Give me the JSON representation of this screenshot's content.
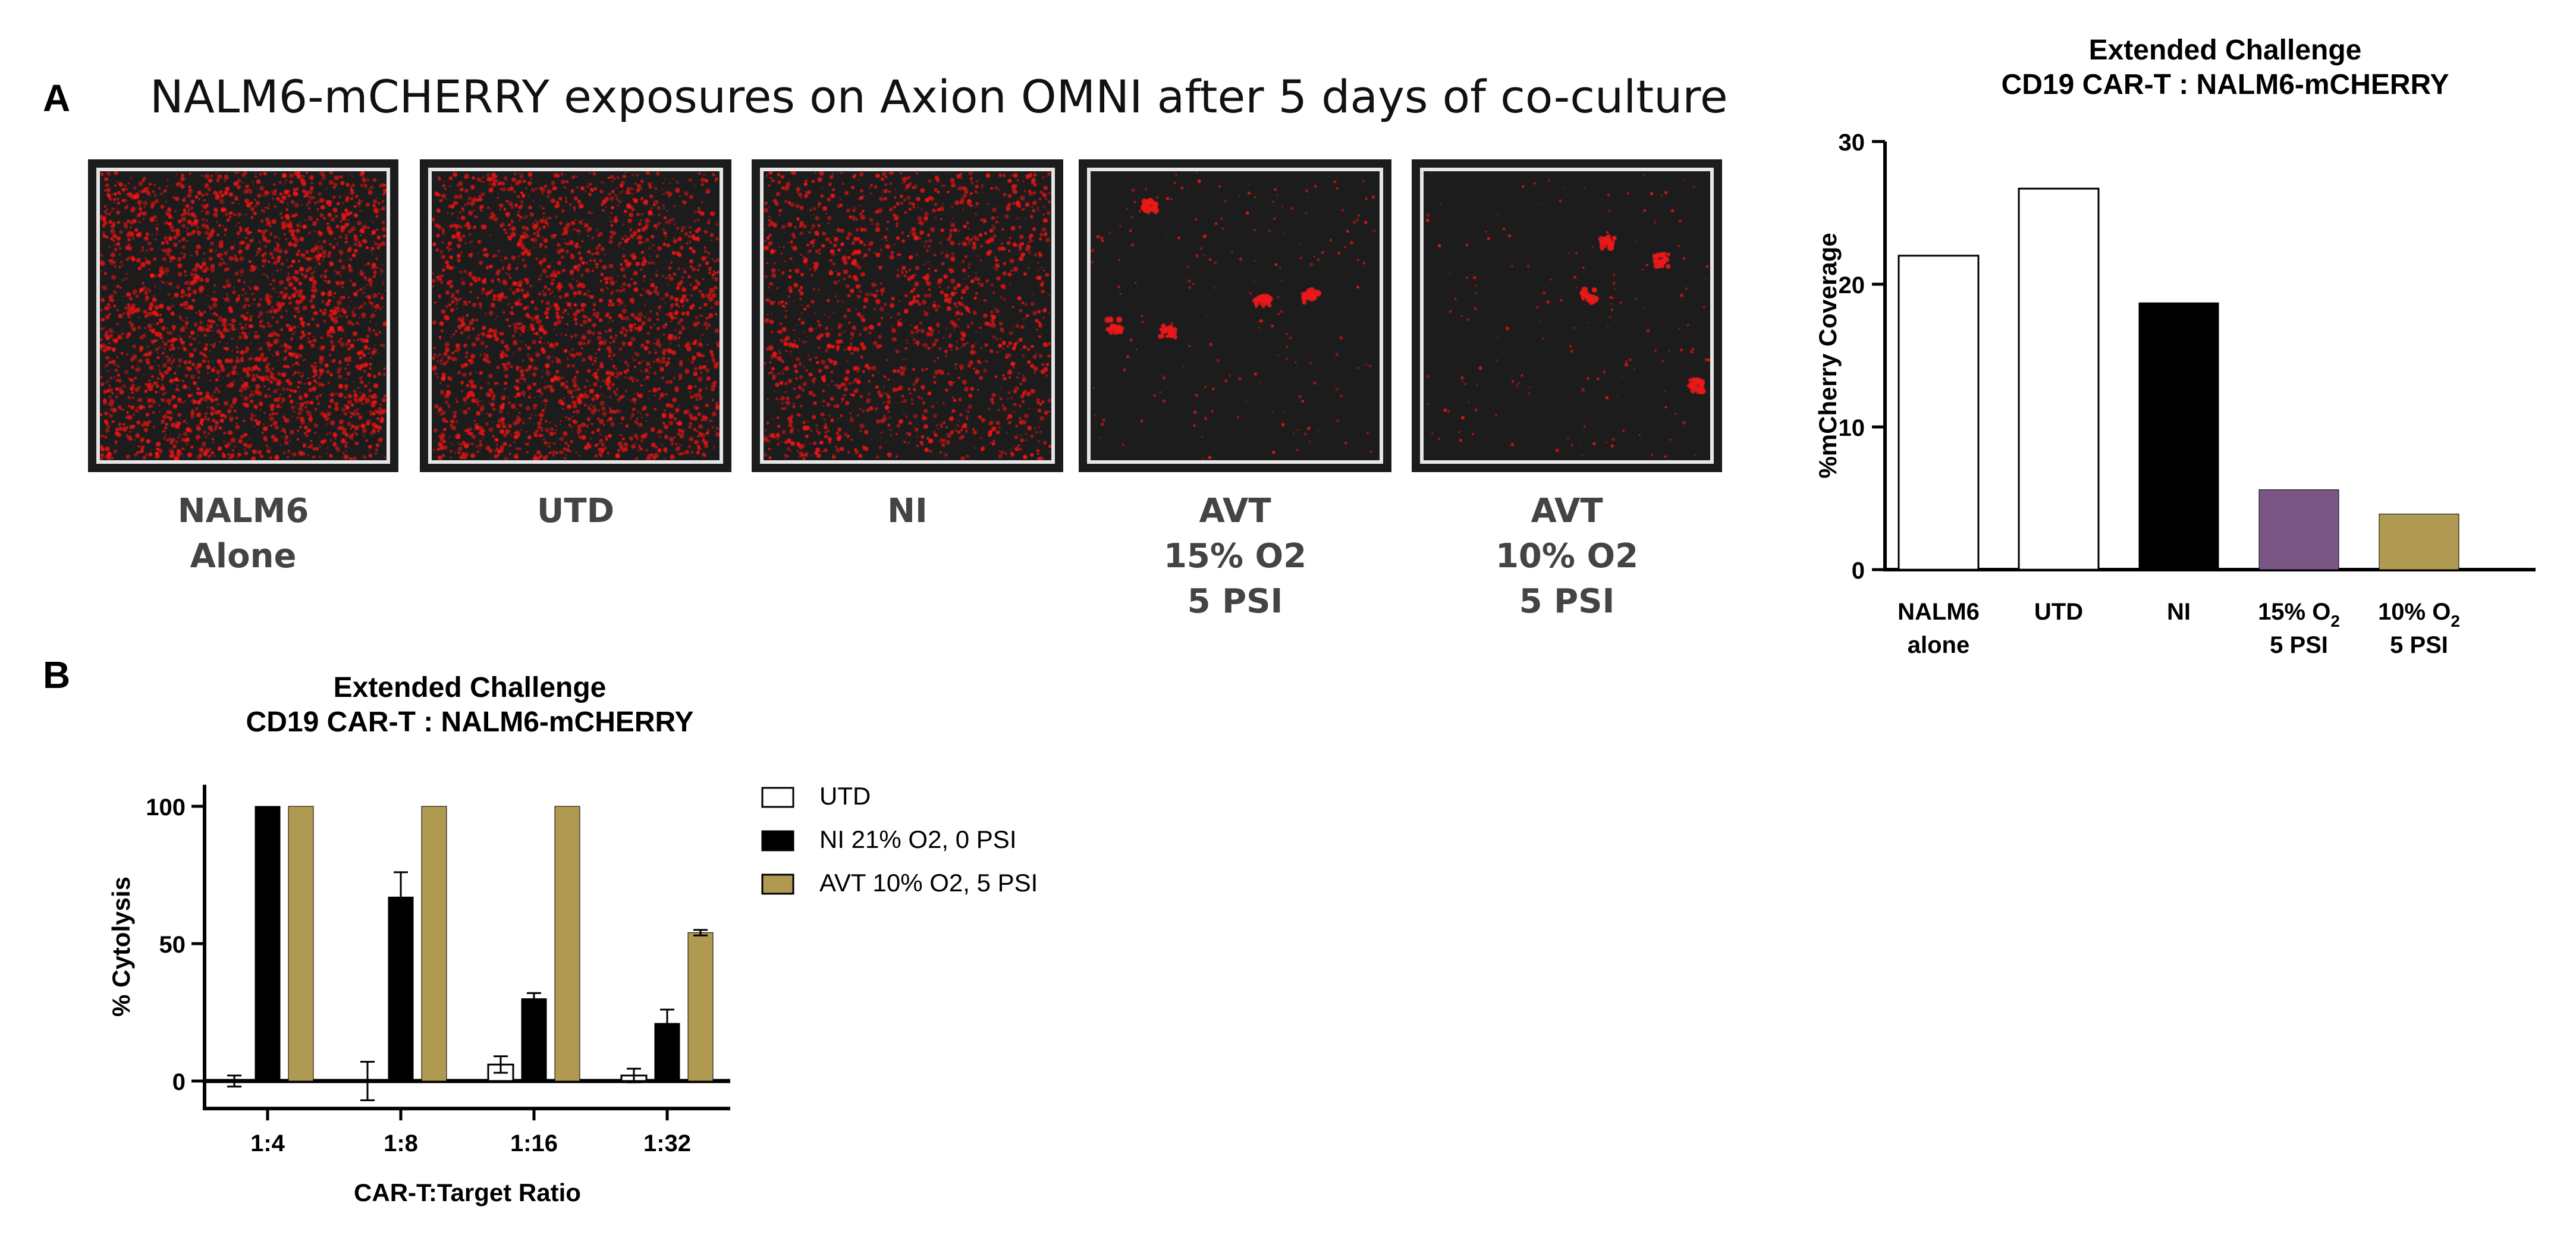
{
  "panel_a": {
    "letter": "A",
    "heading": "NALM6-mCHERRY exposures on Axion OMNI after 5 days of co-culture",
    "images": [
      {
        "label_lines": [
          "NALM6",
          "Alone"
        ],
        "density": 1.0
      },
      {
        "label_lines": [
          "UTD"
        ],
        "density": 0.85
      },
      {
        "label_lines": [
          "NI"
        ],
        "density": 0.6
      },
      {
        "label_lines": [
          "AVT",
          "15% O2",
          "5 PSI"
        ],
        "density": 0.05
      },
      {
        "label_lines": [
          "AVT",
          "10% O2",
          "5 PSI"
        ],
        "density": 0.04
      }
    ],
    "chart": {
      "title_lines": [
        "Extended Challenge",
        "CD19 CAR-T : NALM6-mCHERRY"
      ],
      "ylabel": "%mCherry Coverage",
      "category_lines": [
        [
          "NALM6",
          "alone"
        ],
        [
          "UTD"
        ],
        [
          "NI"
        ],
        [
          "15% O",
          "2",
          "5 PSI"
        ],
        [
          "10% O",
          "2",
          "5 PSI"
        ]
      ]
    }
  },
  "panel_b": {
    "letter": "B",
    "chart": {
      "title_lines": [
        "Extended Challenge",
        "CD19 CAR-T : NALM6-mCHERRY"
      ],
      "xlabel": "CAR-T:Target Ratio",
      "ylabel": "% Cytolysis",
      "legend": [
        "UTD",
        "NI 21% O2, 0 PSI",
        "AVT 10% O2, 5 PSI"
      ]
    }
  },
  "chart_data": [
    {
      "type": "bar",
      "title": "Extended Challenge CD19 CAR-T : NALM6-mCHERRY",
      "xlabel": "",
      "ylabel": "%mCherry Coverage",
      "categories": [
        "NALM6 alone",
        "UTD",
        "NI",
        "15% O2 5 PSI",
        "10% O2 5 PSI"
      ],
      "values": [
        22,
        26.7,
        18.7,
        5.6,
        3.9
      ],
      "colors": [
        "#ffffff",
        "#ffffff",
        "#000000",
        "#7a5684",
        "#b09a52"
      ],
      "ylim": [
        0,
        30
      ],
      "yticks": [
        0,
        10,
        20,
        30
      ],
      "grid": false,
      "legend": "none"
    },
    {
      "type": "bar",
      "title": "Extended Challenge CD19 CAR-T : NALM6-mCHERRY",
      "xlabel": "CAR-T:Target Ratio",
      "ylabel": "% Cytolysis",
      "categories": [
        "1:4",
        "1:8",
        "1:16",
        "1:32"
      ],
      "ylim": [
        -10,
        110
      ],
      "yticks": [
        0,
        50,
        100
      ],
      "grid": false,
      "legend": "right",
      "series": [
        {
          "name": "UTD",
          "color": "#ffffff",
          "values": [
            0,
            0,
            6,
            2
          ],
          "errors": [
            2,
            7,
            3,
            2.5
          ]
        },
        {
          "name": "NI 21% O2, 0 PSI",
          "color": "#000000",
          "values": [
            100,
            67,
            30,
            21
          ],
          "errors": [
            0,
            9,
            2,
            5
          ]
        },
        {
          "name": "AVT 10% O2, 5 PSI",
          "color": "#b09a52",
          "values": [
            100,
            100,
            100,
            54
          ],
          "errors": [
            0,
            0,
            0,
            1
          ]
        }
      ]
    }
  ]
}
